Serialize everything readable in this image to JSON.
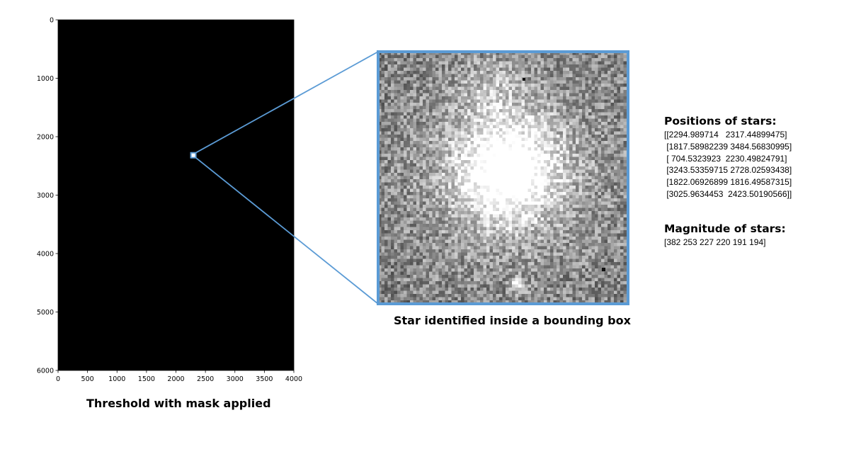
{
  "chart_data": [
    {
      "type": "heatmap",
      "title": "",
      "caption": "Threshold with mask applied",
      "xlabel": "",
      "ylabel": "",
      "xlim": [
        0,
        4000
      ],
      "ylim": [
        6000,
        0
      ],
      "x_ticks": [
        "0",
        "500",
        "1000",
        "1500",
        "2000",
        "2500",
        "3000",
        "3500",
        "4000"
      ],
      "y_ticks": [
        "0",
        "1000",
        "2000",
        "3000",
        "4000",
        "5000",
        "6000"
      ],
      "image_fill": "#000000",
      "highlight_box": {
        "x": 2294.99,
        "y": 2317.45
      },
      "highlight_color": "#5b9bd5"
    },
    {
      "type": "heatmap",
      "caption": "Star identified inside a bounding box",
      "colormap": "gray",
      "border_color": "#5b9bd5"
    }
  ],
  "info": {
    "positions_title": "Positions of stars:",
    "positions_lines": [
      "[[2294.989714   2317.44899475]",
      " [1817.58982239 3484.56830995]",
      " [ 704.5323923  2230.49824791]",
      " [3243.53359715 2728.02593438]",
      " [1822.06926899 1816.49587315]",
      " [3025.9634453  2423.50190566]]"
    ],
    "magnitude_title": "Magnitude of stars:",
    "magnitude_line": "[382 253 227 220 191 194]"
  }
}
